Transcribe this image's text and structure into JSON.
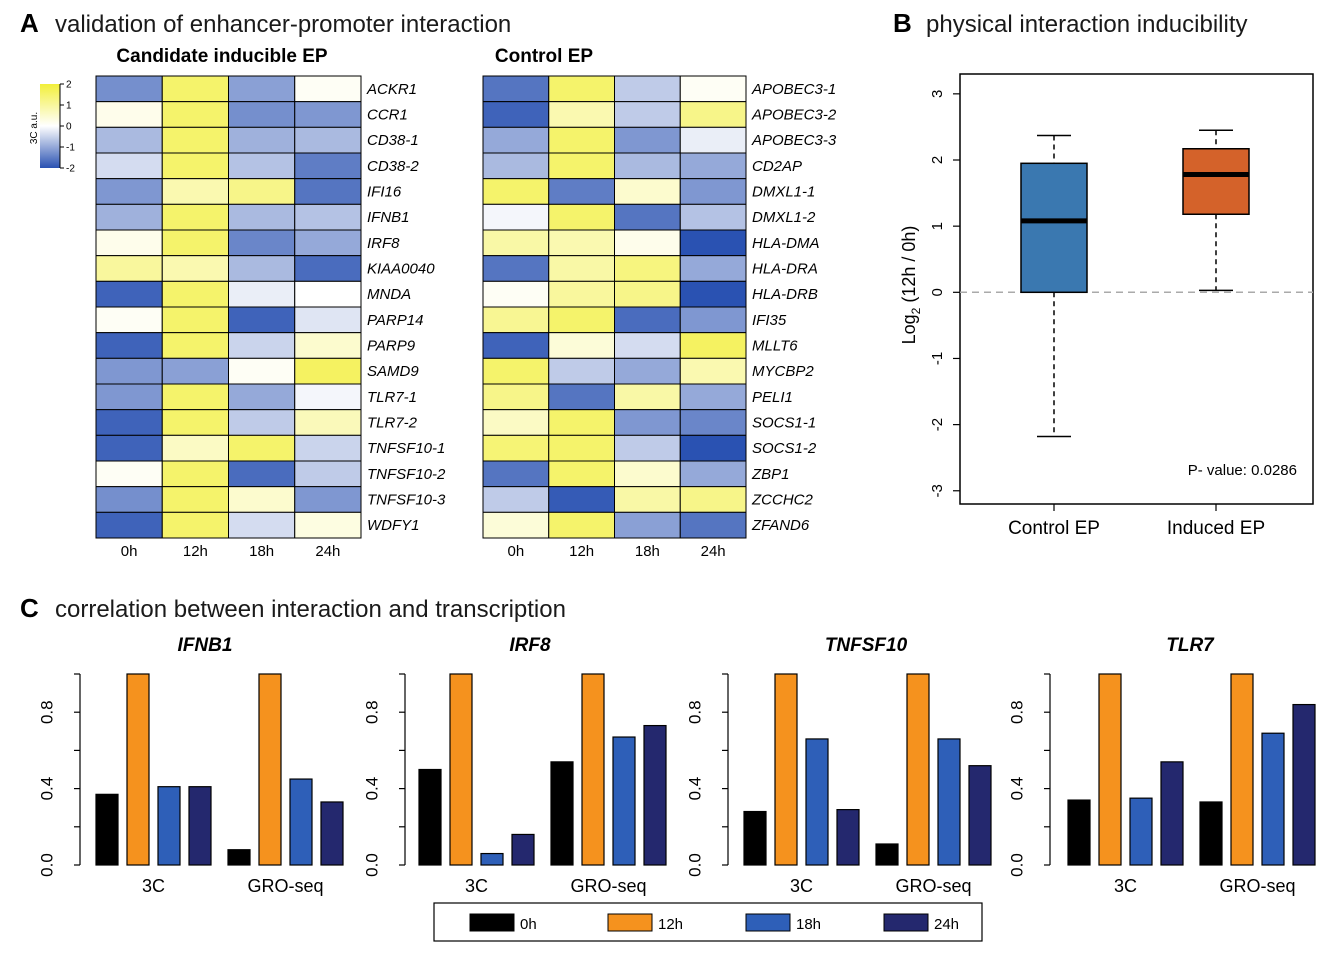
{
  "panels": {
    "A": {
      "letter": "A",
      "title": "validation of enhancer-promoter interaction"
    },
    "B": {
      "letter": "B",
      "title": "physical interaction inducibility"
    },
    "C": {
      "letter": "C",
      "title": "correlation between interaction and transcription"
    }
  },
  "colors": {
    "low": "#2a52b2",
    "mid": "#ffffff",
    "high": "#f2ef3a",
    "black": "#000000",
    "orange": "#f5921e",
    "blue": "#2e5fb8",
    "navy": "#24286e",
    "box_control": "#3a78b0",
    "box_induced": "#d4622a"
  },
  "chart_data": [
    {
      "type": "heatmap",
      "title": "Candidate inducible EP",
      "columns": [
        "0h",
        "12h",
        "18h",
        "24h"
      ],
      "rows": [
        "ACKR1",
        "CCR1",
        "CD38-1",
        "CD38-2",
        "IFI16",
        "IFNB1",
        "IRF8",
        "KIAA0040",
        "MNDA",
        "PARP14",
        "PARP9",
        "SAMD9",
        "TLR7-1",
        "TLR7-2",
        "TNFSF10-1",
        "TNFSF10-2",
        "TNFSF10-3",
        "WDFY1"
      ],
      "values": [
        [
          -1.3,
          1.5,
          -1.1,
          0.1
        ],
        [
          0.2,
          1.5,
          -1.3,
          -1.2
        ],
        [
          -0.8,
          1.5,
          -0.9,
          -0.8
        ],
        [
          -0.4,
          1.5,
          -0.7,
          -1.5
        ],
        [
          -1.2,
          0.8,
          1.2,
          -1.6
        ],
        [
          -0.9,
          1.5,
          -0.8,
          -0.7
        ],
        [
          0.2,
          1.5,
          -1.4,
          -1.0
        ],
        [
          1.0,
          0.8,
          -0.8,
          -1.7
        ],
        [
          -1.8,
          1.5,
          -0.2,
          0.0
        ],
        [
          0.1,
          1.5,
          -1.8,
          -0.3
        ],
        [
          -1.8,
          1.5,
          -0.5,
          0.5
        ],
        [
          -1.2,
          -1.1,
          0.1,
          1.6
        ],
        [
          -1.2,
          1.5,
          -1.0,
          -0.1
        ],
        [
          -1.8,
          1.5,
          -0.6,
          0.7
        ],
        [
          -1.8,
          0.6,
          1.5,
          -0.5
        ],
        [
          0.1,
          1.5,
          -1.7,
          -0.6
        ],
        [
          -1.3,
          1.5,
          0.5,
          -1.2
        ],
        [
          -1.8,
          1.5,
          -0.4,
          0.3
        ]
      ],
      "colorbar": {
        "label": "3C a.u.",
        "ticks": [
          "2",
          "1",
          "0",
          "-1",
          "-2"
        ],
        "range": [
          -2,
          2
        ]
      }
    },
    {
      "type": "heatmap",
      "title": "Control EP",
      "columns": [
        "0h",
        "12h",
        "18h",
        "24h"
      ],
      "rows": [
        "APOBEC3-1",
        "APOBEC3-2",
        "APOBEC3-3",
        "CD2AP",
        "DMXL1-1",
        "DMXL1-2",
        "HLA-DMA",
        "HLA-DRA",
        "HLA-DRB",
        "IFI35",
        "MLLT6",
        "MYCBP2",
        "PELI1",
        "SOCS1-1",
        "SOCS1-2",
        "ZBP1",
        "ZCCHC2",
        "ZFAND6"
      ],
      "values": [
        [
          -1.6,
          1.5,
          -0.6,
          0.1
        ],
        [
          -1.8,
          0.8,
          -0.6,
          1.2
        ],
        [
          -1.0,
          1.5,
          -1.2,
          -0.2
        ],
        [
          -0.8,
          1.5,
          -0.8,
          -1.0
        ],
        [
          1.5,
          -1.5,
          0.5,
          -1.2
        ],
        [
          -0.1,
          1.5,
          -1.6,
          -0.7
        ],
        [
          0.9,
          0.8,
          0.2,
          -2.0
        ],
        [
          -1.6,
          0.9,
          1.3,
          -1.0
        ],
        [
          0.1,
          1.0,
          1.2,
          -2.0
        ],
        [
          1.1,
          1.5,
          -1.7,
          -1.2
        ],
        [
          -1.8,
          0.4,
          -0.4,
          1.6
        ],
        [
          1.5,
          -0.6,
          -1.0,
          0.8
        ],
        [
          1.2,
          -1.6,
          0.9,
          -1.0
        ],
        [
          0.6,
          1.5,
          -1.2,
          -1.4
        ],
        [
          1.4,
          1.5,
          -0.6,
          -2.0
        ],
        [
          -1.6,
          1.5,
          0.5,
          -1.0
        ],
        [
          -0.6,
          -1.9,
          0.9,
          1.2
        ],
        [
          0.4,
          1.5,
          -1.1,
          -1.6
        ]
      ]
    },
    {
      "type": "box",
      "title": "physical interaction inducibility",
      "categories": [
        "Control EP",
        "Induced EP"
      ],
      "ylabel": "Log2 (12h / 0h)",
      "ylabel_main": "Log",
      "ylabel_sub": "2",
      "ylabel_rest": " (12h / 0h)",
      "ylim": [
        -3.2,
        3.3
      ],
      "yticks": [
        -3,
        -2,
        -1,
        0,
        1,
        2,
        3
      ],
      "boxes": [
        {
          "name": "Control EP",
          "min": -2.18,
          "q1": 0.0,
          "median": 1.08,
          "q3": 1.95,
          "max": 2.37
        },
        {
          "name": "Induced EP",
          "min": 0.03,
          "q1": 1.18,
          "median": 1.78,
          "q3": 2.17,
          "max": 2.45
        }
      ],
      "reference_line": 0,
      "annotation": "P- value: 0.0286"
    },
    {
      "type": "bar",
      "title": "IFNB1",
      "categories": [
        "3C",
        "GRO-seq"
      ],
      "series": [
        {
          "name": "0h",
          "values": [
            0.37,
            0.08
          ]
        },
        {
          "name": "12h",
          "values": [
            1.0,
            1.0
          ]
        },
        {
          "name": "18h",
          "values": [
            0.41,
            0.45
          ]
        },
        {
          "name": "24h",
          "values": [
            0.41,
            0.33
          ]
        }
      ],
      "ylim": [
        0,
        1
      ],
      "yticks": [
        "0.0",
        "0.4",
        "0.8"
      ]
    },
    {
      "type": "bar",
      "title": "IRF8",
      "categories": [
        "3C",
        "GRO-seq"
      ],
      "series": [
        {
          "name": "0h",
          "values": [
            0.5,
            0.54
          ]
        },
        {
          "name": "12h",
          "values": [
            1.0,
            1.0
          ]
        },
        {
          "name": "18h",
          "values": [
            0.06,
            0.67
          ]
        },
        {
          "name": "24h",
          "values": [
            0.16,
            0.73
          ]
        }
      ],
      "ylim": [
        0,
        1
      ],
      "yticks": [
        "0.0",
        "0.4",
        "0.8"
      ]
    },
    {
      "type": "bar",
      "title": "TNFSF10",
      "categories": [
        "3C",
        "GRO-seq"
      ],
      "series": [
        {
          "name": "0h",
          "values": [
            0.28,
            0.11
          ]
        },
        {
          "name": "12h",
          "values": [
            1.0,
            1.0
          ]
        },
        {
          "name": "18h",
          "values": [
            0.66,
            0.66
          ]
        },
        {
          "name": "24h",
          "values": [
            0.29,
            0.52
          ]
        }
      ],
      "ylim": [
        0,
        1
      ],
      "yticks": [
        "0.0",
        "0.4",
        "0.8"
      ]
    },
    {
      "type": "bar",
      "title": "TLR7",
      "categories": [
        "3C",
        "GRO-seq"
      ],
      "series": [
        {
          "name": "0h",
          "values": [
            0.34,
            0.33
          ]
        },
        {
          "name": "12h",
          "values": [
            1.0,
            1.0
          ]
        },
        {
          "name": "18h",
          "values": [
            0.35,
            0.69
          ]
        },
        {
          "name": "24h",
          "values": [
            0.54,
            0.84
          ]
        }
      ],
      "ylim": [
        0,
        1
      ],
      "yticks": [
        "0.0",
        "0.4",
        "0.8"
      ]
    }
  ],
  "legend": [
    {
      "label": "0h",
      "color": "#000000"
    },
    {
      "label": "12h",
      "color": "#f5921e"
    },
    {
      "label": "18h",
      "color": "#2e5fb8"
    },
    {
      "label": "24h",
      "color": "#24286e"
    }
  ]
}
